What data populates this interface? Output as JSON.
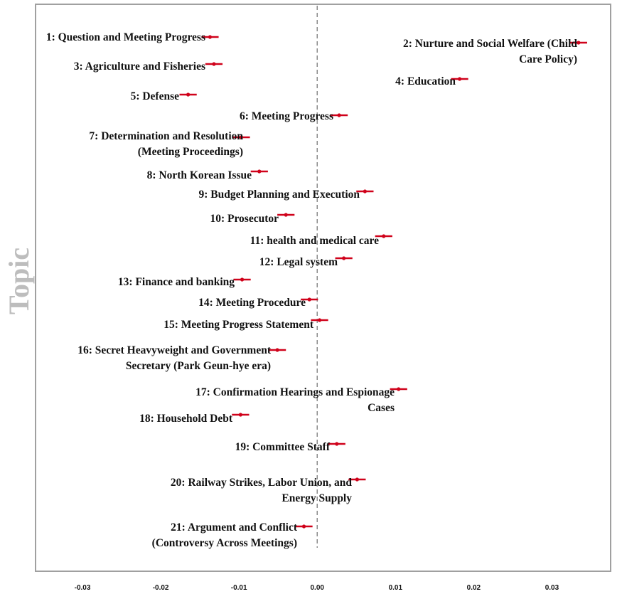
{
  "chart_data": {
    "type": "scatter",
    "ylabel": "Topic",
    "xlim": [
      -0.036,
      0.0375
    ],
    "x_ticks": [
      -0.03,
      -0.02,
      -0.01,
      0.0,
      0.01,
      0.02,
      0.03
    ],
    "x_tick_labels": [
      "-0.03",
      "-0.02",
      "-0.01",
      "0.00",
      "0.01",
      "0.02",
      "0.03"
    ],
    "reference_line_x": 0.0,
    "grid": false,
    "color": "#d0021b",
    "points": [
      {
        "topic_id": 1,
        "label": [
          "1: Question and Meeting Progress"
        ],
        "estimate": -0.0137,
        "ci": [
          -0.0148,
          -0.0126
        ]
      },
      {
        "topic_id": 2,
        "label": [
          "2: Nurture and Social Welfare (Child",
          "Care Policy)"
        ],
        "estimate": 0.0334,
        "ci": [
          0.0323,
          0.0345
        ]
      },
      {
        "topic_id": 3,
        "label": [
          "3: Agriculture and Fisheries"
        ],
        "estimate": -0.0132,
        "ci": [
          -0.0143,
          -0.0121
        ]
      },
      {
        "topic_id": 4,
        "label": [
          "4: Education"
        ],
        "estimate": 0.0182,
        "ci": [
          0.0171,
          0.0193
        ]
      },
      {
        "topic_id": 5,
        "label": [
          "5: Defense"
        ],
        "estimate": -0.0165,
        "ci": [
          -0.0176,
          -0.0154
        ]
      },
      {
        "topic_id": 6,
        "label": [
          "6: Meeting Progress"
        ],
        "estimate": 0.0028,
        "ci": [
          0.0017,
          0.0039
        ]
      },
      {
        "topic_id": 7,
        "label": [
          "7: Determination and Resolution",
          "(Meeting Proceedings)"
        ],
        "estimate": -0.0097,
        "ci": [
          -0.0108,
          -0.0086
        ]
      },
      {
        "topic_id": 8,
        "label": [
          "8: North Korean Issue"
        ],
        "estimate": -0.0074,
        "ci": [
          -0.0085,
          -0.0063
        ]
      },
      {
        "topic_id": 9,
        "label": [
          "9: Budget Planning and Execution"
        ],
        "estimate": 0.0061,
        "ci": [
          0.005,
          0.0072
        ]
      },
      {
        "topic_id": 10,
        "label": [
          "10: Prosecutor"
        ],
        "estimate": -0.004,
        "ci": [
          -0.0051,
          -0.0029
        ]
      },
      {
        "topic_id": 11,
        "label": [
          "11: health and medical care"
        ],
        "estimate": 0.0085,
        "ci": [
          0.0074,
          0.0096
        ]
      },
      {
        "topic_id": 12,
        "label": [
          "12: Legal system"
        ],
        "estimate": 0.0034,
        "ci": [
          0.0023,
          0.0045
        ]
      },
      {
        "topic_id": 13,
        "label": [
          "13: Finance and banking"
        ],
        "estimate": -0.0096,
        "ci": [
          -0.0107,
          -0.0085
        ]
      },
      {
        "topic_id": 14,
        "label": [
          "14: Meeting Procedure"
        ],
        "estimate": -0.001,
        "ci": [
          -0.0021,
          0.0001
        ]
      },
      {
        "topic_id": 15,
        "label": [
          "15: Meeting Progress Statement"
        ],
        "estimate": 0.0003,
        "ci": [
          -0.0008,
          0.0014
        ]
      },
      {
        "topic_id": 16,
        "label": [
          "16: Secret Heavyweight and Government",
          "Secretary (Park Geun-hye era)"
        ],
        "estimate": -0.0051,
        "ci": [
          -0.0062,
          -0.004
        ]
      },
      {
        "topic_id": 17,
        "label": [
          "17: Confirmation Hearings and Espionage",
          "Cases"
        ],
        "estimate": 0.0104,
        "ci": [
          0.0093,
          0.0115
        ]
      },
      {
        "topic_id": 18,
        "label": [
          "18: Household Debt"
        ],
        "estimate": -0.0098,
        "ci": [
          -0.0109,
          -0.0087
        ]
      },
      {
        "topic_id": 19,
        "label": [
          "19: Committee Staff"
        ],
        "estimate": 0.0025,
        "ci": [
          0.0014,
          0.0036
        ]
      },
      {
        "topic_id": 20,
        "label": [
          "20: Railway Strikes, Labor Union, and",
          "Energy Supply"
        ],
        "estimate": 0.0051,
        "ci": [
          0.004,
          0.0062
        ]
      },
      {
        "topic_id": 21,
        "label": [
          "21: Argument and Conflict",
          "(Controversy Across Meetings)"
        ],
        "estimate": -0.0017,
        "ci": [
          -0.0028,
          -0.0006
        ]
      }
    ]
  }
}
